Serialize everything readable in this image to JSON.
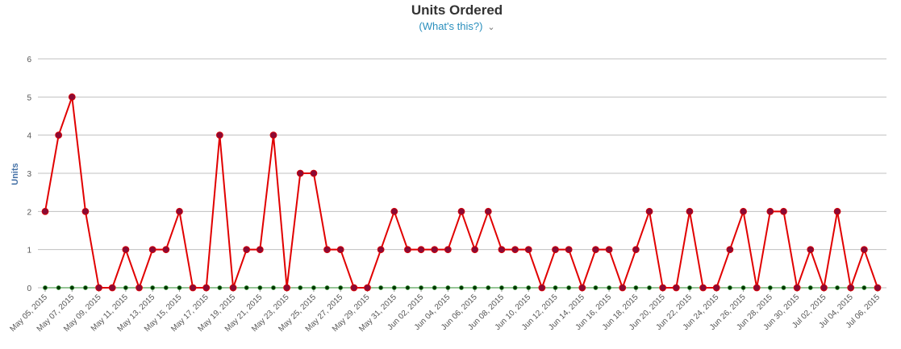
{
  "title": "Units Ordered",
  "subtitle": "(What's this?)",
  "colors": {
    "series1_line": "#e10000",
    "series1_marker": "#8b0a34",
    "series2_line": "#2e8b2e",
    "series2_marker": "#003300",
    "grid": "#c0c0c0"
  },
  "chart_data": {
    "type": "line",
    "title": "Units Ordered",
    "ylabel": "Units",
    "ylim": [
      0,
      6
    ],
    "yticks": [
      0,
      1,
      2,
      3,
      4,
      5,
      6
    ],
    "grid": true,
    "x_tick_labels": [
      "May 05, 2015",
      "May 07, 2015",
      "May 09, 2015",
      "May 11, 2015",
      "May 13, 2015",
      "May 15, 2015",
      "May 17, 2015",
      "May 19, 2015",
      "May 21, 2015",
      "May 23, 2015",
      "May 25, 2015",
      "May 27, 2015",
      "May 29, 2015",
      "May 31, 2015",
      "Jun 02, 2015",
      "Jun 04, 2015",
      "Jun 06, 2015",
      "Jun 08, 2015",
      "Jun 10, 2015",
      "Jun 12, 2015",
      "Jun 14, 2015",
      "Jun 16, 2015",
      "Jun 18, 2015",
      "Jun 20, 2015",
      "Jun 22, 2015",
      "Jun 24, 2015",
      "Jun 26, 2015",
      "Jun 28, 2015",
      "Jun 30, 2015",
      "Jul 02, 2015",
      "Jul 04, 2015",
      "Jul 06, 2015"
    ],
    "series": [
      {
        "values": [
          2,
          4,
          5,
          2,
          0,
          0,
          1,
          0,
          1,
          1,
          2,
          0,
          0,
          4,
          0,
          1,
          1,
          4,
          0,
          3,
          3,
          1,
          1,
          0,
          0,
          1,
          2,
          1,
          1,
          1,
          1,
          2,
          1,
          2,
          1,
          1,
          1,
          0,
          1,
          1,
          0,
          1,
          1,
          0,
          1,
          2,
          0,
          0,
          2,
          0,
          0,
          1,
          2,
          0,
          2,
          2,
          0,
          1,
          0,
          2,
          0,
          1,
          0
        ]
      },
      {
        "values": [
          0,
          0,
          0,
          0,
          0,
          0,
          0,
          0,
          0,
          0,
          0,
          0,
          0,
          0,
          0,
          0,
          0,
          0,
          0,
          0,
          0,
          0,
          0,
          0,
          0,
          0,
          0,
          0,
          0,
          0,
          0,
          0,
          0,
          0,
          0,
          0,
          0,
          0,
          0,
          0,
          0,
          0,
          0,
          0,
          0,
          0,
          0,
          0,
          0,
          0,
          0,
          0,
          0,
          0,
          0,
          0,
          0,
          0,
          0,
          0,
          0,
          0,
          0
        ]
      }
    ]
  }
}
